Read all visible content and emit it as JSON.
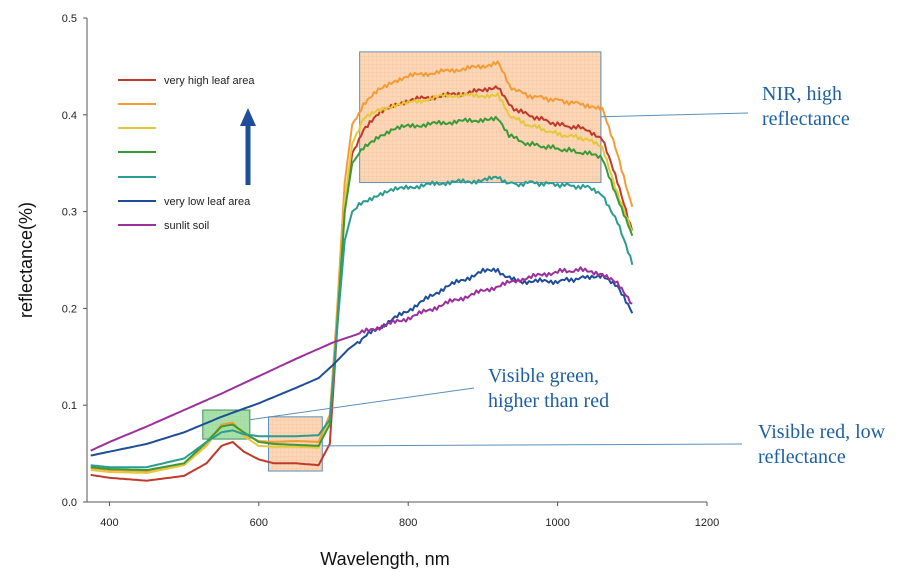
{
  "chart_data": {
    "type": "line",
    "title": "",
    "xlabel": "Wavelength, nm",
    "ylabel": "reflectance(%)",
    "xlim": [
      370,
      1200
    ],
    "ylim": [
      0,
      0.5
    ],
    "xticks": [
      "400",
      "600",
      "800",
      "1000",
      "1200"
    ],
    "yticks": [
      "0.0",
      "0.1",
      "0.2",
      "0.3",
      "0.4",
      "0.5"
    ],
    "legend_position": "top-left",
    "legend_arrow": true,
    "series": [
      {
        "name": "very high leaf area",
        "color": "#c0392b",
        "x": [
          375,
          400,
          450,
          500,
          530,
          550,
          565,
          580,
          600,
          620,
          650,
          680,
          695,
          705,
          715,
          725,
          740,
          760,
          780,
          800,
          850,
          900,
          920,
          935,
          945,
          960,
          1000,
          1040,
          1060,
          1080,
          1100
        ],
        "y": [
          0.028,
          0.025,
          0.022,
          0.027,
          0.04,
          0.058,
          0.062,
          0.052,
          0.044,
          0.04,
          0.04,
          0.038,
          0.06,
          0.18,
          0.3,
          0.36,
          0.385,
          0.4,
          0.41,
          0.415,
          0.42,
          0.425,
          0.43,
          0.41,
          0.405,
          0.4,
          0.39,
          0.385,
          0.375,
          0.33,
          0.28
        ]
      },
      {
        "name": "",
        "color": "#f39c36",
        "x": [
          375,
          400,
          450,
          500,
          530,
          550,
          565,
          580,
          600,
          620,
          650,
          680,
          695,
          705,
          715,
          725,
          740,
          760,
          780,
          800,
          850,
          900,
          920,
          935,
          945,
          960,
          1000,
          1040,
          1060,
          1080,
          1100
        ],
        "y": [
          0.035,
          0.033,
          0.032,
          0.04,
          0.06,
          0.08,
          0.082,
          0.07,
          0.063,
          0.062,
          0.063,
          0.062,
          0.09,
          0.2,
          0.33,
          0.39,
          0.41,
          0.425,
          0.435,
          0.44,
          0.445,
          0.45,
          0.455,
          0.43,
          0.425,
          0.42,
          0.415,
          0.41,
          0.405,
          0.36,
          0.305
        ]
      },
      {
        "name": "",
        "color": "#e5c83a",
        "x": [
          375,
          400,
          450,
          500,
          530,
          550,
          565,
          580,
          600,
          620,
          650,
          680,
          695,
          705,
          715,
          725,
          740,
          760,
          780,
          800,
          850,
          900,
          920,
          935,
          945,
          960,
          1000,
          1040,
          1060,
          1080,
          1100
        ],
        "y": [
          0.033,
          0.031,
          0.03,
          0.038,
          0.058,
          0.078,
          0.08,
          0.068,
          0.058,
          0.057,
          0.057,
          0.056,
          0.085,
          0.19,
          0.31,
          0.37,
          0.395,
          0.405,
          0.41,
          0.412,
          0.42,
          0.42,
          0.42,
          0.4,
          0.395,
          0.39,
          0.38,
          0.375,
          0.365,
          0.32,
          0.28
        ]
      },
      {
        "name": "",
        "color": "#3a9a3a",
        "x": [
          375,
          400,
          450,
          500,
          530,
          550,
          565,
          580,
          600,
          620,
          650,
          680,
          695,
          705,
          715,
          725,
          740,
          760,
          780,
          800,
          850,
          900,
          920,
          935,
          945,
          960,
          1000,
          1040,
          1060,
          1080,
          1100
        ],
        "y": [
          0.036,
          0.034,
          0.033,
          0.04,
          0.062,
          0.078,
          0.08,
          0.072,
          0.062,
          0.06,
          0.059,
          0.058,
          0.08,
          0.185,
          0.3,
          0.35,
          0.365,
          0.378,
          0.385,
          0.388,
          0.392,
          0.395,
          0.395,
          0.38,
          0.375,
          0.37,
          0.365,
          0.36,
          0.355,
          0.315,
          0.275
        ]
      },
      {
        "name": "",
        "color": "#2a9d8f",
        "x": [
          375,
          400,
          450,
          500,
          530,
          550,
          565,
          580,
          600,
          620,
          650,
          680,
          695,
          705,
          715,
          725,
          740,
          760,
          780,
          800,
          850,
          900,
          920,
          935,
          945,
          960,
          1000,
          1040,
          1060,
          1080,
          1100
        ],
        "y": [
          0.038,
          0.036,
          0.036,
          0.045,
          0.062,
          0.072,
          0.074,
          0.07,
          0.068,
          0.068,
          0.068,
          0.069,
          0.085,
          0.18,
          0.27,
          0.3,
          0.31,
          0.318,
          0.322,
          0.325,
          0.33,
          0.332,
          0.335,
          0.33,
          0.328,
          0.33,
          0.328,
          0.325,
          0.318,
          0.29,
          0.245
        ]
      },
      {
        "name": "very low leaf area",
        "color": "#1f4e99",
        "x": [
          375,
          400,
          450,
          500,
          550,
          600,
          650,
          680,
          700,
          720,
          750,
          800,
          850,
          900,
          920,
          930,
          950,
          1000,
          1040,
          1060,
          1080,
          1100
        ],
        "y": [
          0.048,
          0.052,
          0.06,
          0.072,
          0.088,
          0.102,
          0.118,
          0.128,
          0.142,
          0.158,
          0.175,
          0.198,
          0.222,
          0.238,
          0.24,
          0.232,
          0.228,
          0.228,
          0.232,
          0.235,
          0.222,
          0.195
        ]
      },
      {
        "name": "sunlit soil",
        "color": "#9b2f9b",
        "x": [
          375,
          400,
          450,
          500,
          550,
          600,
          650,
          700,
          750,
          800,
          850,
          900,
          950,
          1000,
          1040,
          1060,
          1080,
          1100
        ],
        "y": [
          0.053,
          0.062,
          0.078,
          0.095,
          0.112,
          0.13,
          0.148,
          0.165,
          0.178,
          0.19,
          0.205,
          0.218,
          0.23,
          0.238,
          0.24,
          0.235,
          0.225,
          0.205
        ]
      }
    ],
    "highlight_boxes": [
      {
        "name": "nir-box",
        "x": [
          735,
          1058
        ],
        "y": [
          0.33,
          0.465
        ],
        "fill": "#f9c9a0",
        "stroke": "#5b8fb9"
      },
      {
        "name": "green-box",
        "x": [
          525,
          588
        ],
        "y": [
          0.065,
          0.095
        ],
        "fill": "#7fdc8f",
        "stroke": "#3a8f5a"
      },
      {
        "name": "red-box",
        "x": [
          613,
          685
        ],
        "y": [
          0.032,
          0.088
        ],
        "fill": "#f9c9a0",
        "stroke": "#5b8fb9"
      }
    ],
    "annotations": [
      {
        "name": "nir",
        "lines": [
          "NIR, high",
          "reflectance"
        ],
        "target_x": 1058,
        "target_y": 0.398,
        "color": "#1f5fa0"
      },
      {
        "name": "green",
        "lines": [
          "Visible green,",
          "higher than red"
        ],
        "target_x": 588,
        "target_y": 0.085,
        "color": "#1f5fa0"
      },
      {
        "name": "red",
        "lines": [
          "Visible red, low",
          "reflectance"
        ],
        "target_x": 685,
        "target_y": 0.058,
        "color": "#1f5fa0"
      }
    ]
  }
}
